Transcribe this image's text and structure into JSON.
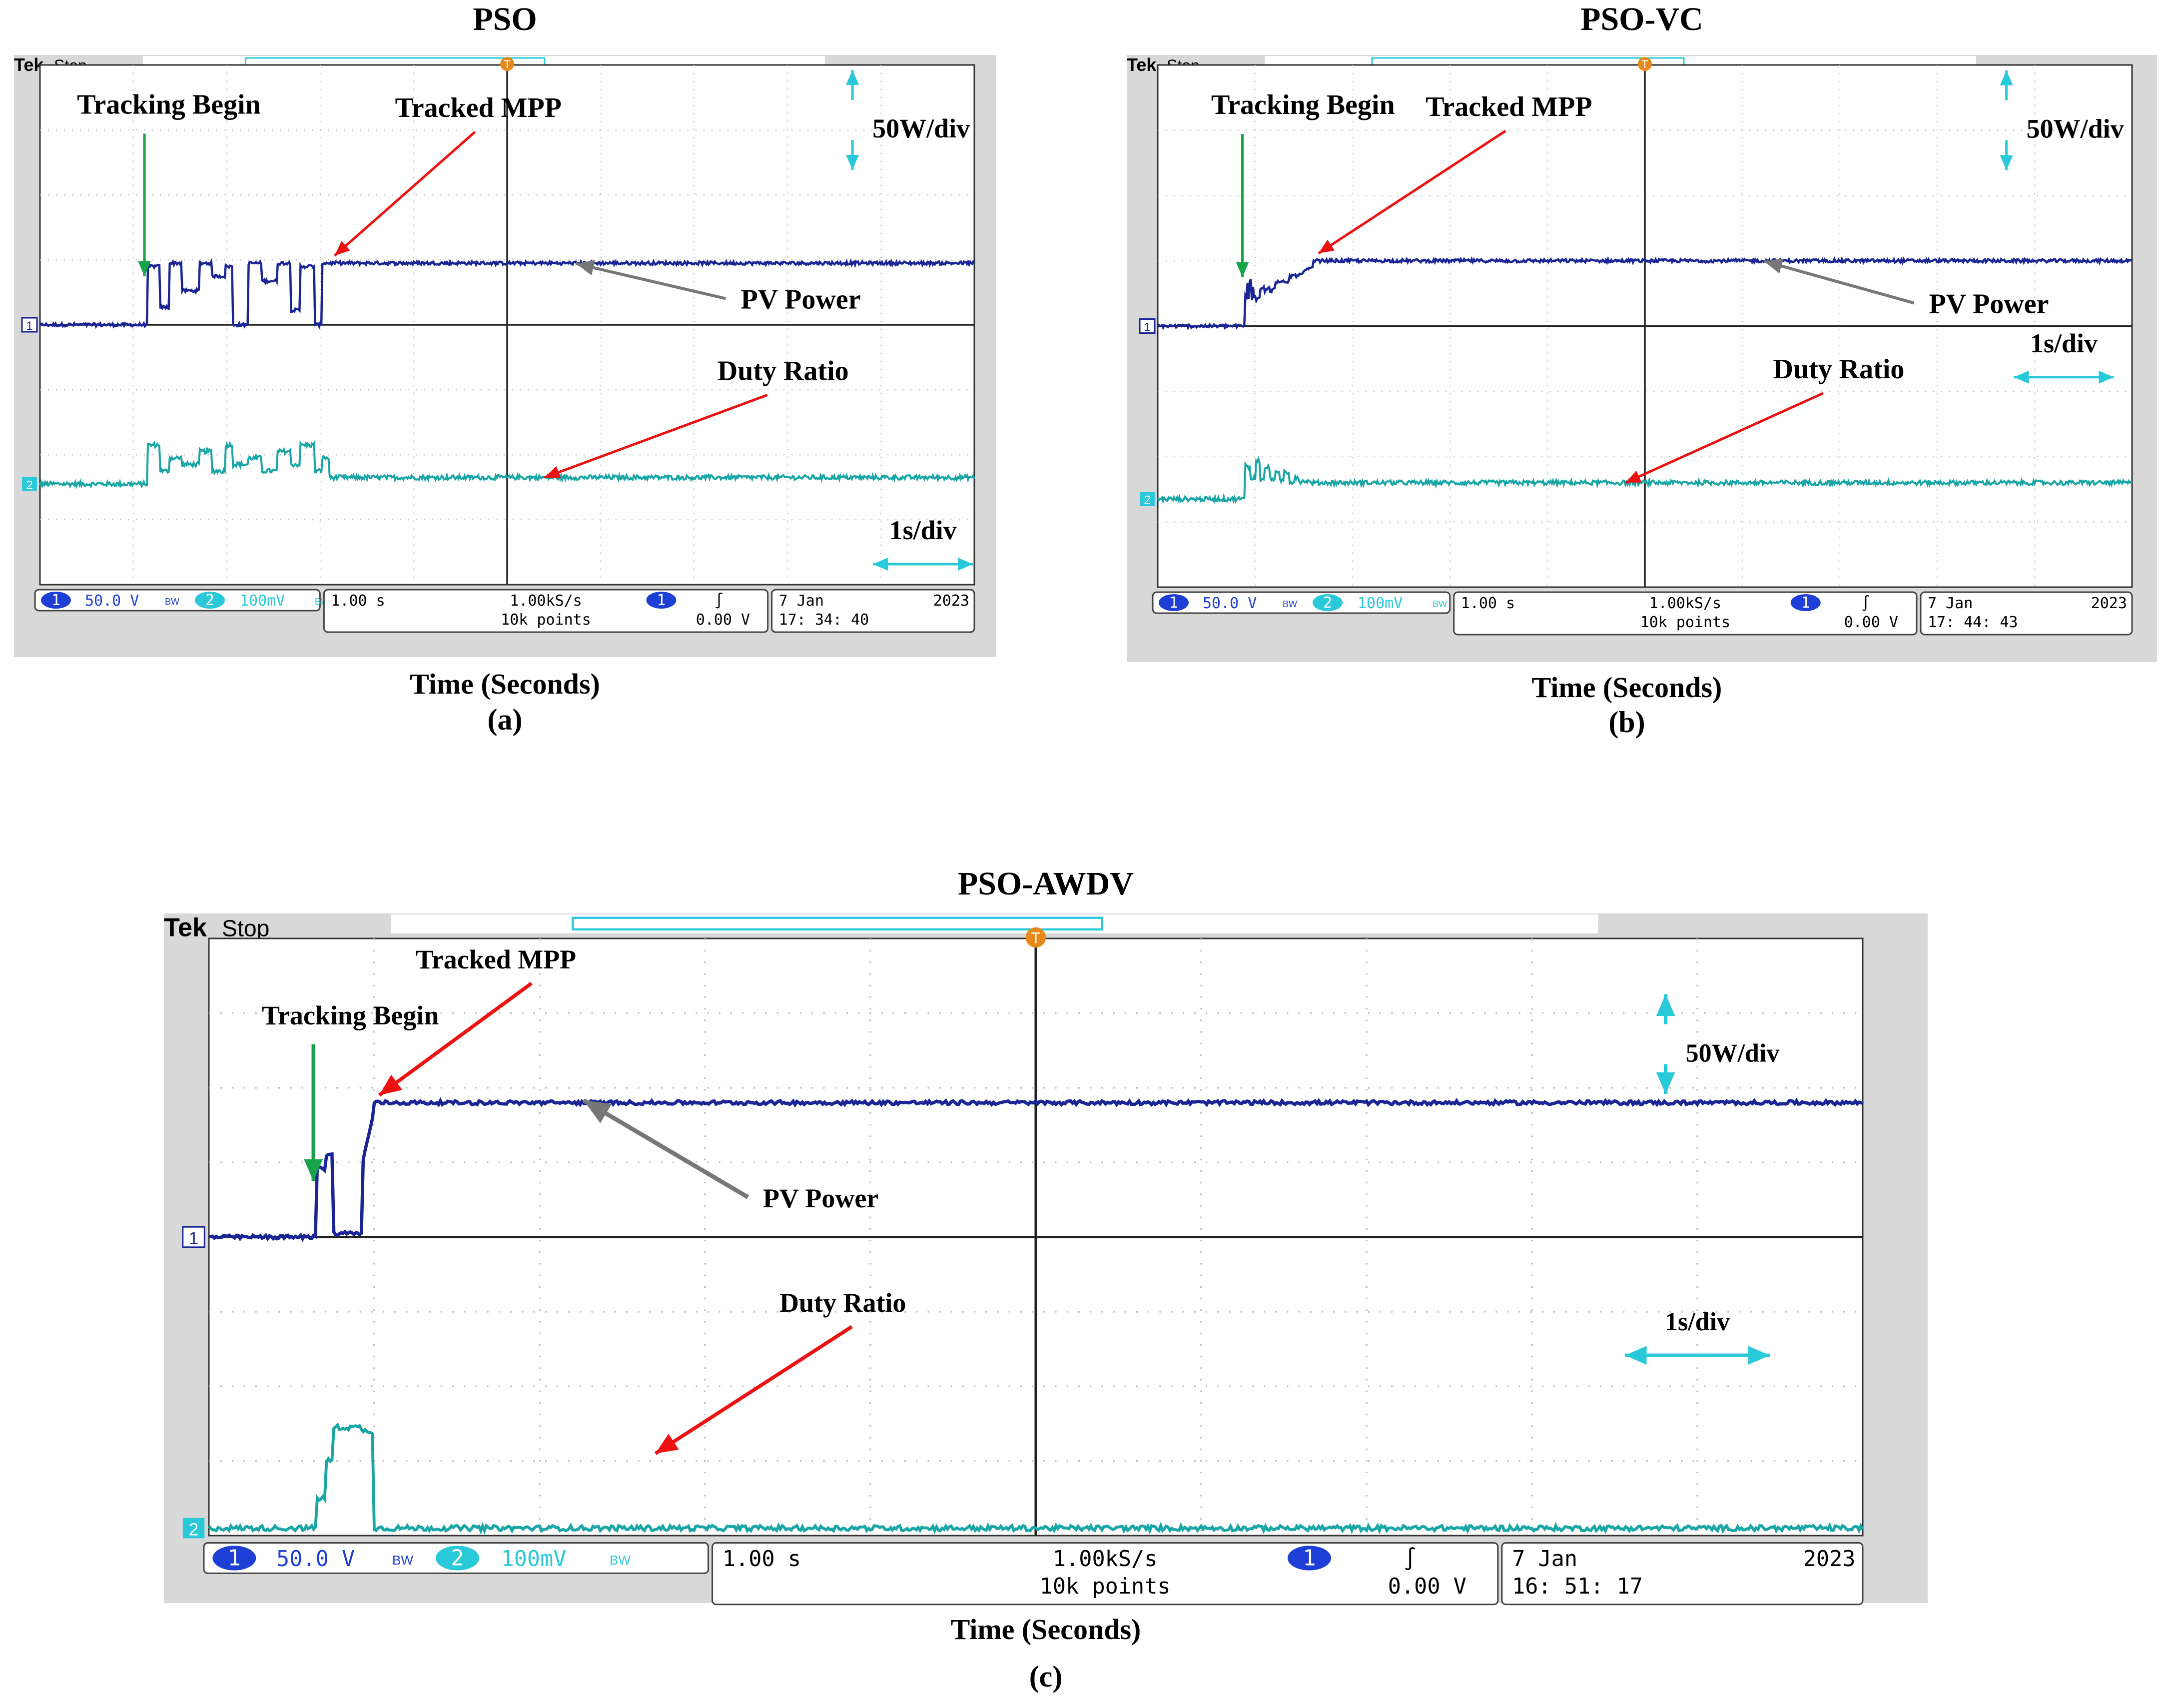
{
  "colors": {
    "scope_bg": "#d8d8d8",
    "screen_bg": "#ffffff",
    "grid": "#bdbdbd",
    "center_line": "#222222",
    "ch1": "#1a2596",
    "ch2": "#1aa6a6",
    "ch2_cyan": "#29c9d9",
    "ch2_dark": "#1b4f4f",
    "cursor_orange": "#e58a1a",
    "arrow_green": "#16a34a",
    "arrow_red": "#ee1111",
    "arrow_gray": "#777777",
    "badge_blue": "#1e3fd6"
  },
  "chart_data": [
    {
      "panel_id": "a",
      "type": "line",
      "title": "PSO",
      "caption": "(a)",
      "xlabel": "Time (Seconds)",
      "ylabel": "",
      "xlim": [
        0,
        10
      ],
      "ylim": [
        -4,
        4
      ],
      "grid": true,
      "annotations": {
        "tracking_begin": "Tracking Begin",
        "tracked_mpp": "Tracked MPP",
        "pv_power": "PV Power",
        "duty_ratio": "Duty Ratio",
        "power_scale": "50W/div",
        "time_scale": "1s/div"
      },
      "scope": {
        "brand": "Tek",
        "state": "Stop",
        "ch1_marker": "1",
        "ch2_marker": "2",
        "ch1_scale": "50.0 V",
        "ch2_scale": "100mV",
        "bw_label": "BW",
        "timebase": "1.00 s",
        "sample_rate": "1.00kS/s",
        "record_length": "10k points",
        "trigger_channel": "1",
        "trigger_slope": "∫",
        "trigger_level": "0.00 V",
        "date": "7 Jan",
        "year": "2023",
        "time": "17: 34: 40"
      },
      "tracking_start_s": 1.15,
      "settle_s": 3.1,
      "series": [
        {
          "name": "PV Power",
          "channel": 1,
          "baseline_div": 0.0,
          "settled_div": 0.95,
          "pattern": "switching between 0 and 0.95 div during search"
        },
        {
          "name": "Duty Ratio",
          "channel": 2,
          "baseline_div": -2.45,
          "settled_div": -2.35,
          "pattern": "steps between -2.45 and -1.6 div during search"
        }
      ]
    },
    {
      "panel_id": "b",
      "type": "line",
      "title": "PSO-VC",
      "caption": "(b)",
      "xlabel": "Time (Seconds)",
      "ylabel": "",
      "xlim": [
        0,
        10
      ],
      "ylim": [
        -4,
        4
      ],
      "grid": true,
      "annotations": {
        "tracking_begin": "Tracking Begin",
        "tracked_mpp": "Tracked MPP",
        "pv_power": "PV Power",
        "duty_ratio": "Duty Ratio",
        "power_scale": "50W/div",
        "time_scale": "1s/div"
      },
      "scope": {
        "brand": "Tek",
        "state": "Stop",
        "ch1_marker": "1",
        "ch2_marker": "2",
        "ch1_scale": "50.0 V",
        "ch2_scale": "100mV",
        "bw_label": "BW",
        "timebase": "1.00 s",
        "sample_rate": "1.00kS/s",
        "record_length": "10k points",
        "trigger_channel": "1",
        "trigger_slope": "∫",
        "trigger_level": "0.00 V",
        "date": "7 Jan",
        "year": "2023",
        "time": "17: 44: 43"
      },
      "tracking_start_s": 0.9,
      "settle_s": 1.6,
      "series": [
        {
          "name": "PV Power",
          "channel": 1,
          "baseline_div": 0.0,
          "settled_div": 1.0,
          "pattern": "damped oscillation converging to 1.0 div"
        },
        {
          "name": "Duty Ratio",
          "channel": 2,
          "baseline_div": -2.65,
          "settled_div": -2.4,
          "pattern": "damped steps converging to -2.4 div"
        }
      ]
    },
    {
      "panel_id": "c",
      "type": "line",
      "title": "PSO-AWDV",
      "caption": "(c)",
      "xlabel": "Time (Seconds)",
      "ylabel": "",
      "xlim": [
        0,
        10
      ],
      "ylim": [
        -4,
        4
      ],
      "grid": true,
      "annotations": {
        "tracking_begin": "Tracking Begin",
        "tracked_mpp": "Tracked MPP",
        "pv_power": "PV Power",
        "duty_ratio": "Duty Ratio",
        "power_scale": "50W/div",
        "time_scale": "1s/div"
      },
      "scope": {
        "brand": "Tek",
        "state": "Stop",
        "ch1_marker": "1",
        "ch2_marker": "2",
        "ch1_scale": "50.0 V",
        "ch2_scale": "100mV",
        "bw_label": "BW",
        "timebase": "1.00 s",
        "sample_rate": "1.00kS/s",
        "record_length": "10k points",
        "trigger_channel": "1",
        "trigger_slope": "∫",
        "trigger_level": "0.00 V",
        "date": "7 Jan",
        "year": "2023",
        "time": "16: 51: 17"
      },
      "tracking_start_s": 0.65,
      "settle_s": 1.0,
      "series": [
        {
          "name": "PV Power",
          "channel": 1,
          "baseline_div": 0.0,
          "settled_div": 1.8,
          "pattern": "single dip then steps to 1.8 div"
        },
        {
          "name": "Duty Ratio",
          "channel": 2,
          "baseline_div": -3.9,
          "settled_div": -3.9,
          "pattern": "single pulse to -2.5 div then back"
        }
      ]
    }
  ]
}
